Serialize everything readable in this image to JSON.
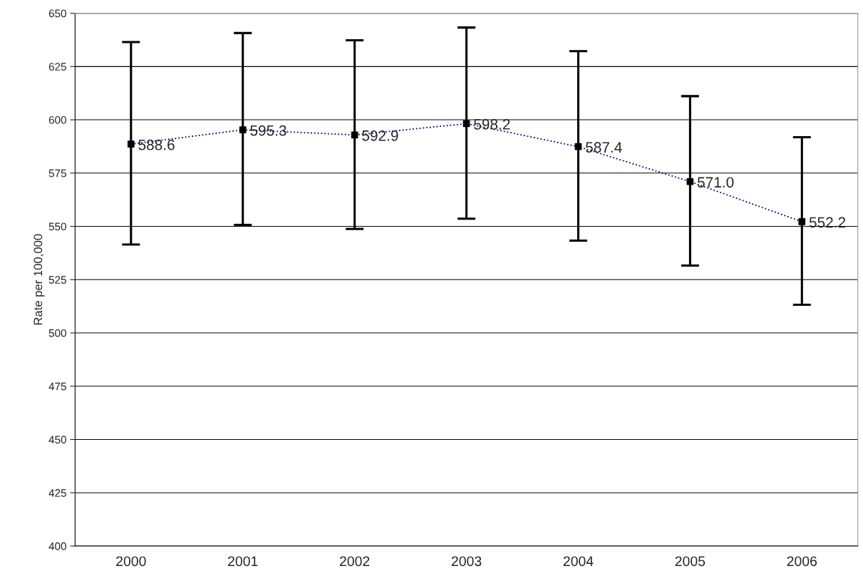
{
  "chart_data": {
    "type": "line",
    "ylabel": "Rate per 100,000",
    "categories": [
      "2000",
      "2001",
      "2002",
      "2003",
      "2004",
      "2005",
      "2006"
    ],
    "series": [
      {
        "color": "#000080",
        "values": [
          588.6,
          595.3,
          592.9,
          598.2,
          587.4,
          571.0,
          552.2
        ],
        "value_labels": [
          "588.6",
          "595.3",
          "592.9",
          "598.2",
          "587.4",
          "571.0",
          "552.2"
        ],
        "errors": [
          [
            541.5,
            636.5
          ],
          [
            550.7,
            640.7
          ],
          [
            548.8,
            637.3
          ],
          [
            553.6,
            643.3
          ],
          [
            543.3,
            632.2
          ],
          [
            531.6,
            611.1
          ],
          [
            513.2,
            591.8
          ]
        ]
      }
    ],
    "ylim": [
      400,
      650
    ],
    "yticks": [
      400,
      425,
      450,
      475,
      500,
      525,
      550,
      575,
      600,
      625,
      650
    ],
    "grid": "y",
    "marker": "square",
    "line_style": "dotted"
  }
}
